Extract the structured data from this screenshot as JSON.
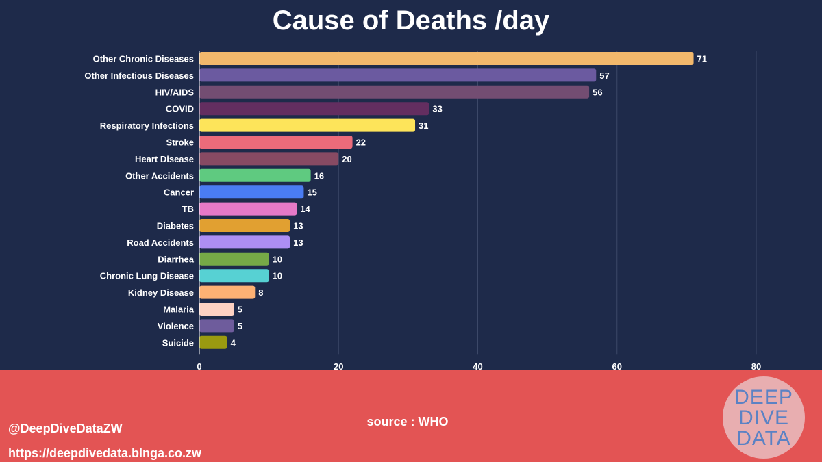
{
  "chart_data": {
    "type": "bar",
    "orientation": "horizontal",
    "title": "Cause of Deaths /day",
    "categories": [
      "Other Chronic Diseases",
      "Other Infectious Diseases",
      "HIV/AIDS",
      "COVID",
      "Respiratory Infections",
      "Stroke",
      "Heart Disease",
      "Other Accidents",
      "Cancer",
      "TB",
      "Diabetes",
      "Road Accidents",
      "Diarrhea",
      "Chronic Lung Disease",
      "Kidney Disease",
      "Malaria",
      "Violence",
      "Suicide"
    ],
    "values": [
      71,
      57,
      56,
      33,
      31,
      22,
      20,
      16,
      15,
      14,
      13,
      13,
      10,
      10,
      8,
      5,
      5,
      4
    ],
    "colors": [
      "#f2b86c",
      "#6b5aa0",
      "#734d72",
      "#632e60",
      "#fde45a",
      "#ec6b7a",
      "#874a63",
      "#5fca80",
      "#4a7cf3",
      "#e679c7",
      "#e1a031",
      "#ad8ef4",
      "#76a947",
      "#57d1d3",
      "#fdb174",
      "#fed2c3",
      "#6e5c9c",
      "#9a9a10"
    ],
    "xlim": [
      0,
      80
    ],
    "xticks": [
      0,
      20,
      40,
      60,
      80
    ],
    "xlabel": "",
    "ylabel": "",
    "grid": true,
    "value_labels": true
  },
  "footer": {
    "source": "source : WHO",
    "handle": "@DeepDiveDataZW",
    "url": "https://deepdivedata.blnga.co.zw"
  },
  "logo": {
    "line1": "DEEP",
    "line2": "DIVE",
    "line3": "DATA"
  },
  "colors": {
    "background": "#1e2a4a",
    "footer": "#e35454",
    "text": "#ffffff"
  }
}
